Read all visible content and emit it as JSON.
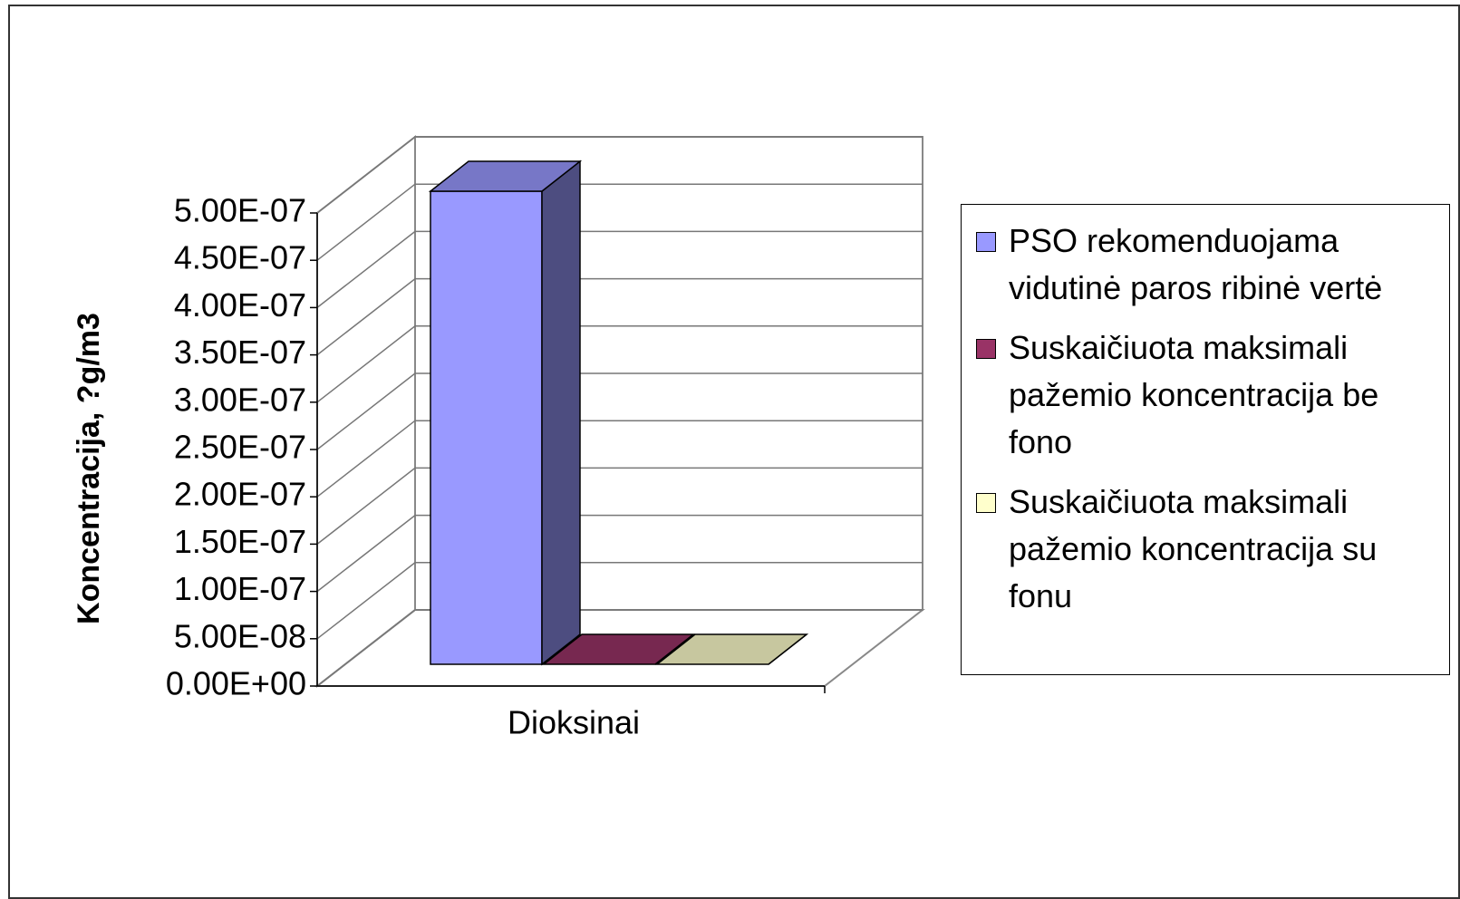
{
  "chart_data": {
    "type": "bar3d",
    "categories": [
      "Dioksinai"
    ],
    "y_label": "Koncentracija, ?g/m3",
    "series": [
      {
        "name": "PSO rekomenduojama vidutinė paros ribinė vertė",
        "color": "#9999ff",
        "values": [
          5e-07
        ]
      },
      {
        "name": "Suskaičiuota maksimali pažemio koncentracija be fono",
        "color": "#993366",
        "values": [
          0
        ]
      },
      {
        "name": "Suskaičiuota maksimali pažemio koncentracija su fonu",
        "color": "#ffffcc",
        "values": [
          0
        ]
      }
    ],
    "ylim": [
      0,
      5e-07
    ],
    "yticks": [
      {
        "value": 0,
        "label": "0.00E+00"
      },
      {
        "value": 5e-08,
        "label": "5.00E-08"
      },
      {
        "value": 1e-07,
        "label": "1.00E-07"
      },
      {
        "value": 1.5e-07,
        "label": "1.50E-07"
      },
      {
        "value": 2e-07,
        "label": "2.00E-07"
      },
      {
        "value": 2.5e-07,
        "label": "2.50E-07"
      },
      {
        "value": 3e-07,
        "label": "3.00E-07"
      },
      {
        "value": 3.5e-07,
        "label": "3.50E-07"
      },
      {
        "value": 4e-07,
        "label": "4.00E-07"
      },
      {
        "value": 4.5e-07,
        "label": "4.50E-07"
      },
      {
        "value": 5e-07,
        "label": "5.00E-07"
      }
    ],
    "grid": true,
    "legend": "right"
  }
}
